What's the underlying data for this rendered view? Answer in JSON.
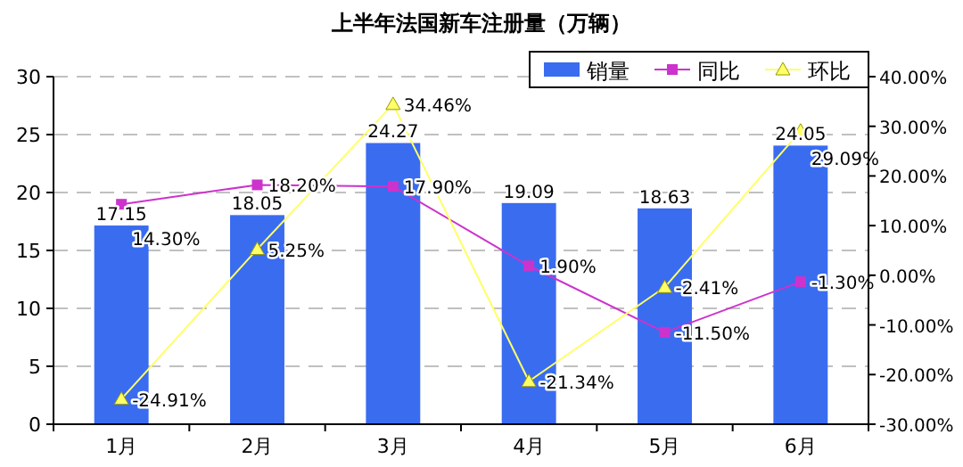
{
  "chart_data": {
    "type": "bar",
    "title": "上半年法国新车注册量（万辆）",
    "categories": [
      "1月",
      "2月",
      "3月",
      "4月",
      "5月",
      "6月"
    ],
    "series": [
      {
        "name": "销量",
        "color": "#3a6cf0",
        "values": [
          17.15,
          18.05,
          24.27,
          19.09,
          18.63,
          24.05
        ],
        "value_labels": [
          "17.15",
          "18.05",
          "24.27",
          "19.09",
          "18.63",
          "24.05"
        ]
      },
      {
        "name": "同比",
        "type": "line",
        "axis": "y2",
        "color": "#cc33cc",
        "marker": "square",
        "values": [
          14.3,
          18.2,
          17.9,
          1.9,
          -11.5,
          -1.3
        ],
        "value_labels": [
          "14.30%",
          "18.20%",
          "17.90%",
          "1.90%",
          "-11.50%",
          "-1.30%"
        ]
      },
      {
        "name": "环比",
        "type": "line",
        "axis": "y2",
        "color": "#ffff66",
        "marker": "triangle",
        "values": [
          -24.91,
          5.25,
          34.46,
          -21.34,
          -2.41,
          29.09
        ],
        "value_labels": [
          "-24.91%",
          "5.25%",
          "34.46%",
          "-21.34%",
          "-2.41%",
          "29.09%"
        ]
      }
    ],
    "ylim": [
      0,
      30
    ],
    "yticks": [
      0,
      5,
      10,
      15,
      20,
      25,
      30
    ],
    "y2lim": [
      -30,
      40
    ],
    "y2ticks": [
      {
        "value": -30,
        "label": "-30.00%"
      },
      {
        "value": -20,
        "label": "-20.00%"
      },
      {
        "value": -10,
        "label": "-10.00%"
      },
      {
        "value": 0,
        "label": "0.00%"
      },
      {
        "value": 10,
        "label": "10.00%"
      },
      {
        "value": 20,
        "label": "20.00%"
      },
      {
        "value": 30,
        "label": "30.00%"
      },
      {
        "value": 40,
        "label": "40.00%"
      }
    ],
    "grid": "y",
    "legend": "top right"
  }
}
